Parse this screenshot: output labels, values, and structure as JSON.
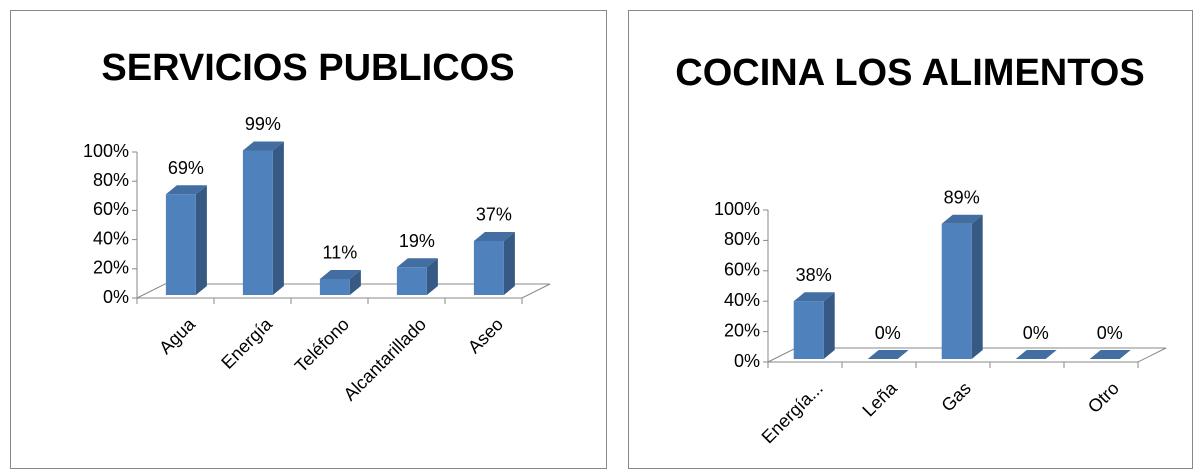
{
  "chart_data": [
    {
      "type": "bar",
      "title": "SERVICIOS PUBLICOS",
      "categories": [
        "Agua",
        "Energía",
        "Teléfono",
        "Alcantarillado",
        "Aseo"
      ],
      "values": [
        69,
        99,
        11,
        19,
        37
      ],
      "value_labels": [
        "69%",
        "99%",
        "11%",
        "19%",
        "37%"
      ],
      "color": "#4f81bd",
      "ylim": [
        0,
        100
      ],
      "yticks": [
        {
          "value": 0,
          "label": "0%"
        },
        {
          "value": 20,
          "label": "20%"
        },
        {
          "value": 40,
          "label": "40%"
        },
        {
          "value": 60,
          "label": "60%"
        },
        {
          "value": 80,
          "label": "80%"
        },
        {
          "value": 100,
          "label": "100%"
        }
      ]
    },
    {
      "type": "bar",
      "title": "COCINA LOS ALIMENTOS",
      "categories": [
        "Energía...",
        "Leña",
        "Gas",
        null,
        "Otro"
      ],
      "values": [
        38,
        0,
        89,
        0,
        0
      ],
      "value_labels": [
        "38%",
        "0%",
        "89%",
        "0%",
        "0%"
      ],
      "color": "#4f81bd",
      "ylim": [
        0,
        100
      ],
      "yticks": [
        {
          "value": 0,
          "label": "0%"
        },
        {
          "value": 20,
          "label": "20%"
        },
        {
          "value": 40,
          "label": "40%"
        },
        {
          "value": 60,
          "label": "60%"
        },
        {
          "value": 80,
          "label": "80%"
        },
        {
          "value": 100,
          "label": "100%"
        }
      ]
    }
  ]
}
